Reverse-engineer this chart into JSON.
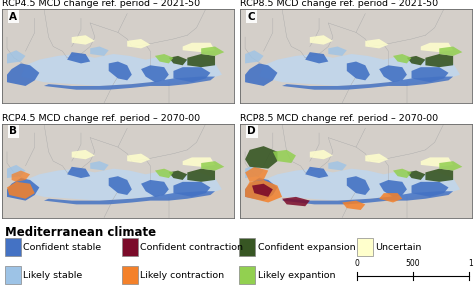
{
  "titles_top": [
    "RCP4.5 MCD change ref. period – 2021-50",
    "RCP8.5 MCD change ref. period – 2021-50"
  ],
  "titles_bottom": [
    "RCP4.5 MCD change ref. period – 2070-00",
    "RCP8.5 MCD change ref. period – 2070-00"
  ],
  "panel_labels": [
    "A",
    "C",
    "B",
    "D"
  ],
  "legend_title": "Mediterranean climate",
  "legend_items": [
    {
      "label": "Confident stable",
      "color": "#4472C4"
    },
    {
      "label": "Likely stable",
      "color": "#9DC3E6"
    },
    {
      "label": "Confident contraction",
      "color": "#7B0B2A"
    },
    {
      "label": "Likely contraction",
      "color": "#F4812A"
    },
    {
      "label": "Confident expansion",
      "color": "#375623"
    },
    {
      "label": "Likely expantion",
      "color": "#92D050"
    },
    {
      "label": "Uncertain",
      "color": "#FFFFCC"
    }
  ],
  "land_color": "#D4CFC9",
  "sea_color": "#C2D5E8",
  "border_color": "#AAAAAA",
  "fig_bg": "#FFFFFF",
  "title_fontsize": 6.8,
  "label_fontsize": 7.5,
  "legend_title_fontsize": 8.5,
  "legend_item_fontsize": 6.8
}
